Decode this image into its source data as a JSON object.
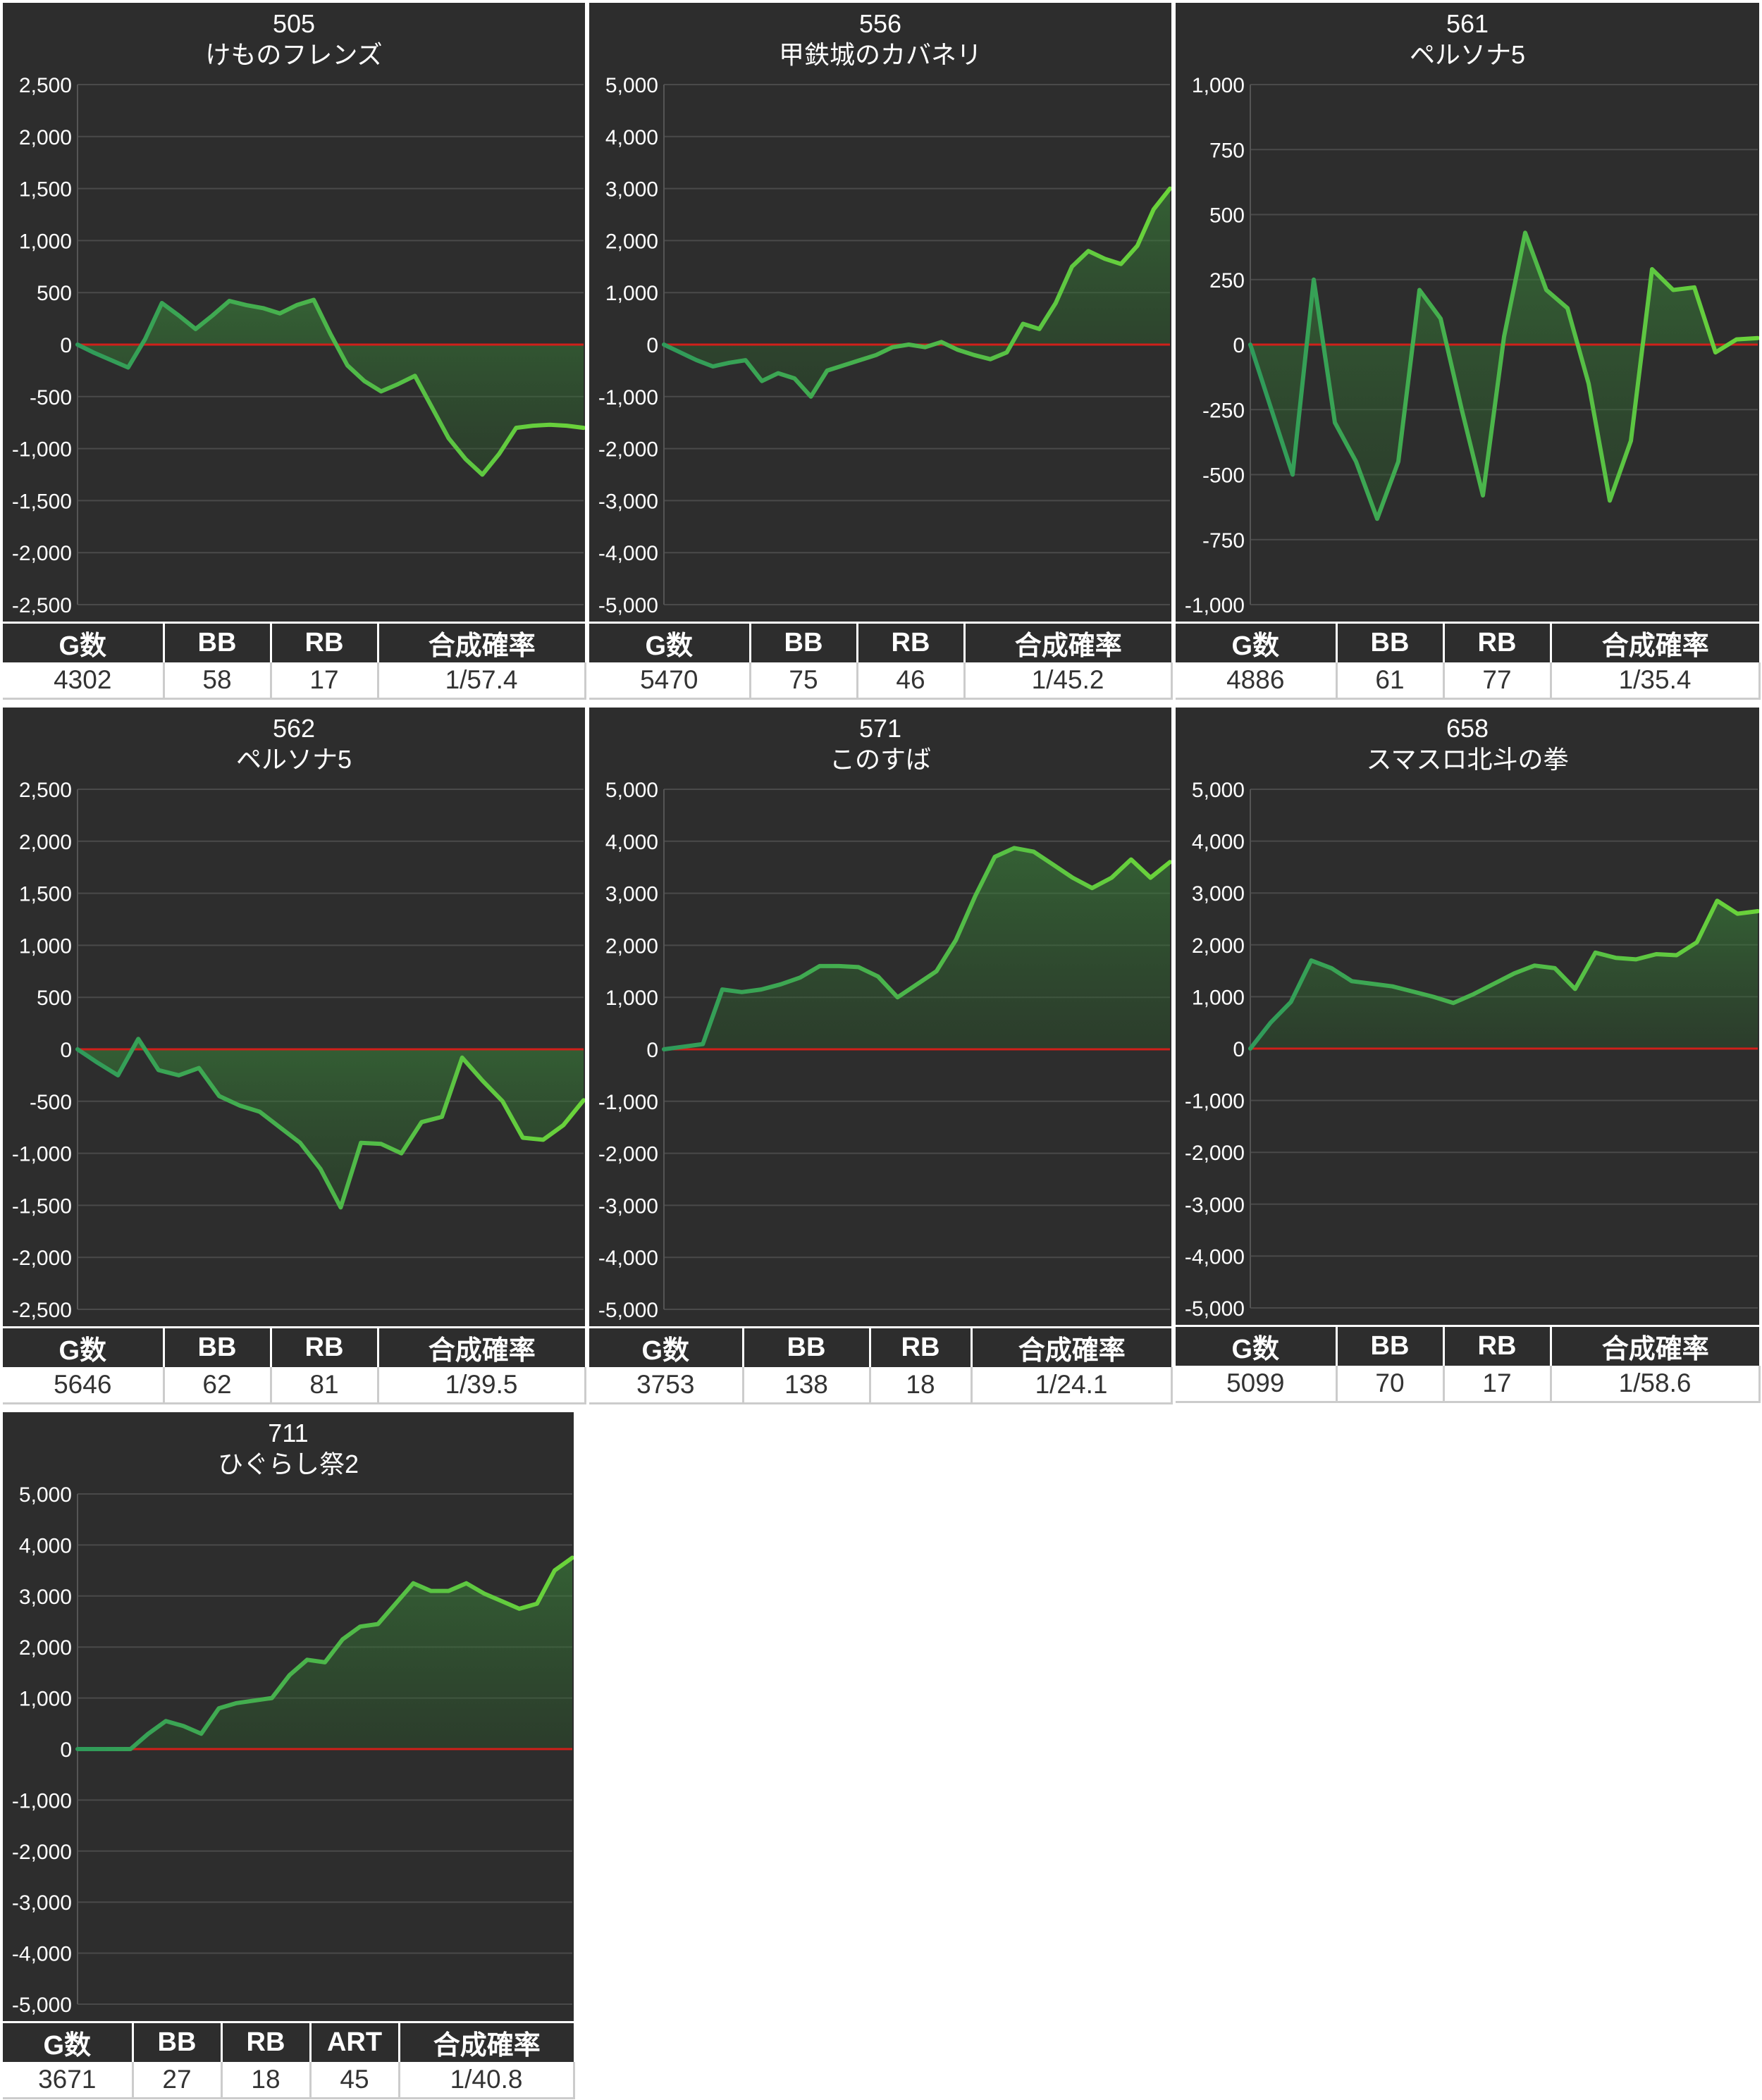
{
  "chart_data": [
    {
      "type": "area",
      "title_num": "505",
      "title_name": "けものフレンズ",
      "ylim": [
        -2500,
        2500
      ],
      "yticks": [
        2500,
        2000,
        1500,
        1000,
        500,
        0,
        -500,
        -1000,
        -1500,
        -2000,
        -2500
      ],
      "ytick_labels": [
        "2,500",
        "2,000",
        "1,500",
        "1,000",
        "500",
        "0",
        "-500",
        "-1,000",
        "-1,500",
        "-2,000",
        "-2,500"
      ],
      "values": [
        0,
        -80,
        -150,
        -220,
        50,
        400,
        280,
        150,
        280,
        420,
        380,
        350,
        300,
        380,
        430,
        100,
        -200,
        -350,
        -450,
        -380,
        -300,
        -600,
        -900,
        -1100,
        -1250,
        -1050,
        -800,
        -780,
        -770,
        -780,
        -800
      ],
      "stats_headers": [
        "G数",
        "BB",
        "RB",
        "合成確率"
      ],
      "stats_values": [
        "4302",
        "58",
        "17",
        "1/57.4"
      ]
    },
    {
      "type": "area",
      "title_num": "556",
      "title_name": "甲鉄城のカバネリ",
      "ylim": [
        -5000,
        5000
      ],
      "yticks": [
        5000,
        4000,
        3000,
        2000,
        1000,
        0,
        -1000,
        -2000,
        -3000,
        -4000,
        -5000
      ],
      "ytick_labels": [
        "5,000",
        "4,000",
        "3,000",
        "2,000",
        "1,000",
        "0",
        "-1,000",
        "-2,000",
        "-3,000",
        "-4,000",
        "-5,000"
      ],
      "values": [
        0,
        -150,
        -300,
        -420,
        -350,
        -300,
        -700,
        -550,
        -650,
        -1000,
        -500,
        -400,
        -300,
        -200,
        -50,
        0,
        -50,
        50,
        -100,
        -200,
        -280,
        -150,
        400,
        300,
        800,
        1500,
        1800,
        1650,
        1550,
        1900,
        2600,
        3000
      ],
      "stats_headers": [
        "G数",
        "BB",
        "RB",
        "合成確率"
      ],
      "stats_values": [
        "5470",
        "75",
        "46",
        "1/45.2"
      ]
    },
    {
      "type": "area",
      "title_num": "561",
      "title_name": "ペルソナ5",
      "ylim": [
        -1000,
        1000
      ],
      "yticks": [
        1000,
        750,
        500,
        250,
        0,
        -250,
        -500,
        -750,
        -1000
      ],
      "ytick_labels": [
        "1,000",
        "750",
        "500",
        "250",
        "0",
        "-250",
        "-500",
        "-750",
        "-1,000"
      ],
      "values": [
        0,
        -250,
        -500,
        250,
        -300,
        -450,
        -670,
        -450,
        210,
        100,
        -250,
        -580,
        30,
        430,
        210,
        140,
        -150,
        -600,
        -370,
        290,
        210,
        220,
        -30,
        20,
        25
      ],
      "stats_headers": [
        "G数",
        "BB",
        "RB",
        "合成確率"
      ],
      "stats_values": [
        "4886",
        "61",
        "77",
        "1/35.4"
      ]
    },
    {
      "type": "area",
      "title_num": "562",
      "title_name": "ペルソナ5",
      "ylim": [
        -2500,
        2500
      ],
      "yticks": [
        2500,
        2000,
        1500,
        1000,
        500,
        0,
        -500,
        -1000,
        -1500,
        -2000,
        -2500
      ],
      "ytick_labels": [
        "2,500",
        "2,000",
        "1,500",
        "1,000",
        "500",
        "0",
        "-500",
        "-1,000",
        "-1,500",
        "-2,000",
        "-2,500"
      ],
      "values": [
        0,
        -130,
        -250,
        100,
        -200,
        -250,
        -180,
        -450,
        -540,
        -600,
        -750,
        -900,
        -1150,
        -1520,
        -900,
        -910,
        -1000,
        -700,
        -650,
        -80,
        -300,
        -500,
        -850,
        -870,
        -730,
        -490
      ],
      "stats_headers": [
        "G数",
        "BB",
        "RB",
        "合成確率"
      ],
      "stats_values": [
        "5646",
        "62",
        "81",
        "1/39.5"
      ]
    },
    {
      "type": "area",
      "title_num": "571",
      "title_name": "このすば",
      "ylim": [
        -5000,
        5000
      ],
      "yticks": [
        5000,
        4000,
        3000,
        2000,
        1000,
        0,
        -1000,
        -2000,
        -3000,
        -4000,
        -5000
      ],
      "ytick_labels": [
        "5,000",
        "4,000",
        "3,000",
        "2,000",
        "1,000",
        "0",
        "-1,000",
        "-2,000",
        "-3,000",
        "-4,000",
        "-5,000"
      ],
      "values": [
        0,
        50,
        100,
        1150,
        1100,
        1150,
        1250,
        1380,
        1600,
        1600,
        1580,
        1400,
        1000,
        1250,
        1500,
        2100,
        2950,
        3700,
        3870,
        3800,
        3550,
        3300,
        3100,
        3300,
        3650,
        3300,
        3600
      ],
      "stats_headers": [
        "G数",
        "BB",
        "RB",
        "合成確率"
      ],
      "stats_values": [
        "3753",
        "138",
        "18",
        "1/24.1"
      ]
    },
    {
      "type": "area",
      "title_num": "658",
      "title_name": "スマスロ北斗の拳",
      "ylim": [
        -5000,
        5000
      ],
      "yticks": [
        5000,
        4000,
        3000,
        2000,
        1000,
        0,
        -1000,
        -2000,
        -3000,
        -4000,
        -5000
      ],
      "ytick_labels": [
        "5,000",
        "4,000",
        "3,000",
        "2,000",
        "1,000",
        "0",
        "-1,000",
        "-2,000",
        "-3,000",
        "-4,000",
        "-5,000"
      ],
      "values": [
        0,
        500,
        900,
        1700,
        1550,
        1300,
        1250,
        1200,
        1100,
        1000,
        880,
        1050,
        1250,
        1450,
        1600,
        1550,
        1150,
        1850,
        1750,
        1720,
        1820,
        1800,
        2050,
        2850,
        2600,
        2650
      ],
      "stats_headers": [
        "G数",
        "BB",
        "RB",
        "合成確率"
      ],
      "stats_values": [
        "5099",
        "70",
        "17",
        "1/58.6"
      ]
    },
    {
      "type": "area",
      "title_num": "711",
      "title_name": "ひぐらし祭2",
      "ylim": [
        -5000,
        5000
      ],
      "yticks": [
        5000,
        4000,
        3000,
        2000,
        1000,
        0,
        -1000,
        -2000,
        -3000,
        -4000,
        -5000
      ],
      "ytick_labels": [
        "5,000",
        "4,000",
        "3,000",
        "2,000",
        "1,000",
        "0",
        "-1,000",
        "-2,000",
        "-3,000",
        "-4,000",
        "-5,000"
      ],
      "values": [
        0,
        0,
        0,
        0,
        300,
        550,
        450,
        300,
        800,
        900,
        950,
        1000,
        1450,
        1750,
        1700,
        2150,
        2400,
        2450,
        2850,
        3250,
        3100,
        3100,
        3250,
        3050,
        2900,
        2750,
        2850,
        3500,
        3750
      ],
      "stats_headers": [
        "G数",
        "BB",
        "RB",
        "ART",
        "合成確率"
      ],
      "stats_values": [
        "3671",
        "27",
        "18",
        "45",
        "1/40.8"
      ]
    }
  ]
}
